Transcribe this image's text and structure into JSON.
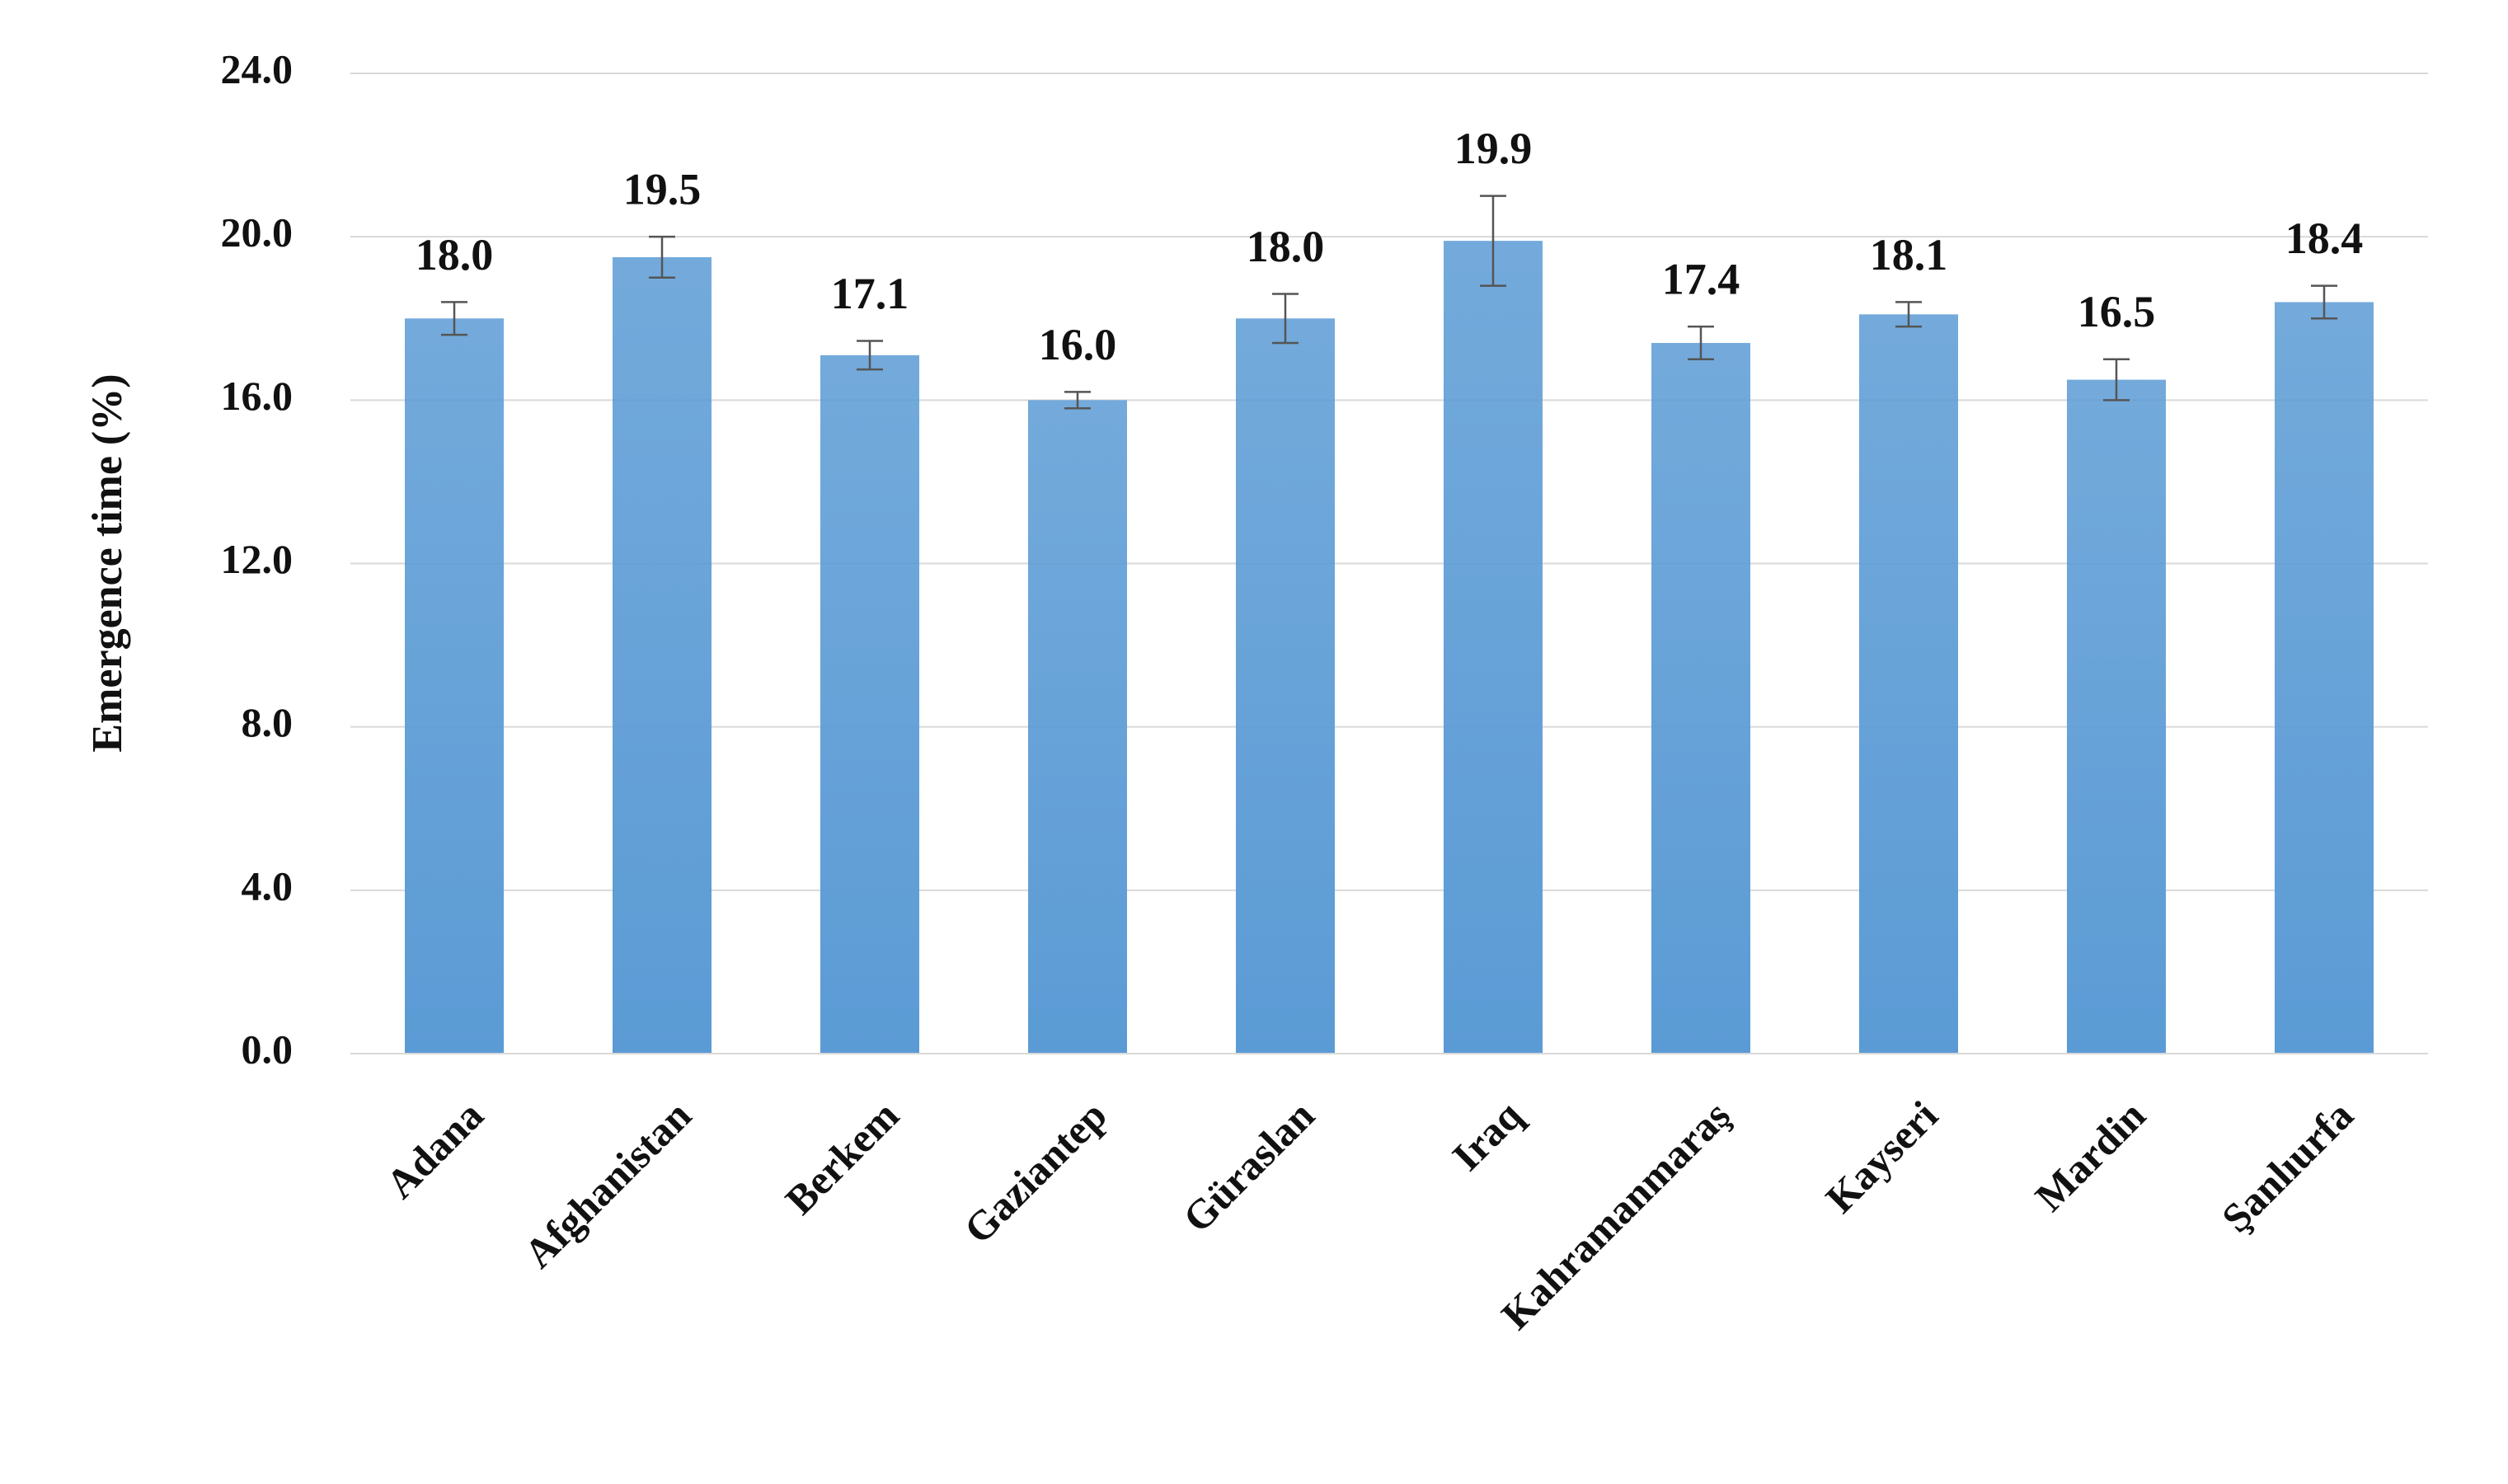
{
  "chart_data": {
    "type": "bar",
    "y_label": "Emergence time (%)",
    "categories": [
      "Adana",
      "Afghanistan",
      "Berkem",
      "Gaziantep",
      "Güraslan",
      "Iraq",
      "Kahramanmaraş",
      "Kayseri",
      "Mardin",
      "Şanlıurfa"
    ],
    "values": [
      18.0,
      19.5,
      17.1,
      16.0,
      18.0,
      19.9,
      17.4,
      18.1,
      16.5,
      18.4
    ],
    "value_labels": [
      "18.0",
      "19.5",
      "17.1",
      "16.0",
      "18.0",
      "19.9",
      "17.4",
      "18.1",
      "16.5",
      "18.4"
    ],
    "errors": [
      0.4,
      0.5,
      0.35,
      0.2,
      0.6,
      1.1,
      0.4,
      0.3,
      0.5,
      0.4
    ],
    "color": "#5b9bd5",
    "ylim": [
      0,
      24
    ],
    "yticks": [
      {
        "value": 0,
        "label": "0.0"
      },
      {
        "value": 4,
        "label": "4.0"
      },
      {
        "value": 8,
        "label": "8.0"
      },
      {
        "value": 12,
        "label": "12.0"
      },
      {
        "value": 16,
        "label": "16.0"
      },
      {
        "value": 20,
        "label": "20.0"
      },
      {
        "value": 24,
        "label": "24.0"
      }
    ],
    "grid": true
  }
}
